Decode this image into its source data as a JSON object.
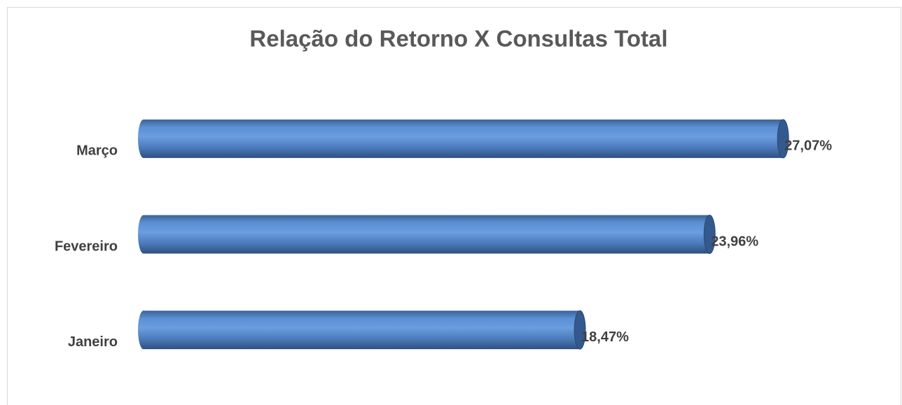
{
  "chart_data": {
    "type": "bar",
    "orientation": "horizontal",
    "title": "Relação do Retorno X Consultas Total",
    "categories": [
      "Janeiro",
      "Fevereiro",
      "Março"
    ],
    "values": [
      18.47,
      23.96,
      27.07
    ],
    "value_labels": [
      "18,47%",
      "23,96%",
      "27,07%"
    ],
    "color": "#4f81bd",
    "xlim": [
      0,
      30
    ]
  }
}
